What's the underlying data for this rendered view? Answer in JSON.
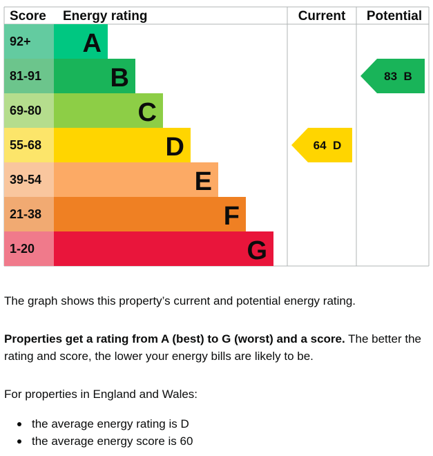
{
  "chart_data": {
    "type": "bar",
    "headers": {
      "score": "Score",
      "rating": "Energy rating",
      "current": "Current",
      "potential": "Potential"
    },
    "bands": [
      {
        "letter": "A",
        "range": "92+",
        "min": 92,
        "max": 100,
        "bar_color": "#00c781",
        "score_color": "#63cba0"
      },
      {
        "letter": "B",
        "range": "81-91",
        "min": 81,
        "max": 91,
        "bar_color": "#19b459",
        "score_color": "#6cc58c"
      },
      {
        "letter": "C",
        "range": "69-80",
        "min": 69,
        "max": 80,
        "bar_color": "#8dce46",
        "score_color": "#b5dd8d"
      },
      {
        "letter": "D",
        "range": "55-68",
        "min": 55,
        "max": 68,
        "bar_color": "#ffd500",
        "score_color": "#fce56a"
      },
      {
        "letter": "E",
        "range": "39-54",
        "min": 39,
        "max": 54,
        "bar_color": "#fcaa65",
        "score_color": "#f9c69e"
      },
      {
        "letter": "F",
        "range": "21-38",
        "min": 21,
        "max": 38,
        "bar_color": "#ef8023",
        "score_color": "#f1aa72"
      },
      {
        "letter": "G",
        "range": "1-20",
        "min": 1,
        "max": 20,
        "bar_color": "#e9153b",
        "score_color": "#f07a8b"
      }
    ],
    "current": {
      "score": 64,
      "rating": "D",
      "color": "#ffd500",
      "text_color": "#0b0c0c"
    },
    "potential": {
      "score": 83,
      "rating": "B",
      "color": "#19b459",
      "text_color": "#0b0c0c"
    }
  },
  "text": {
    "intro": "The graph shows this property’s current and potential energy rating.",
    "bold": "Properties get a rating from A (best) to G (worst) and a score.",
    "rest": " The better the rating and score, the lower your energy bills are likely to be.",
    "region": "For properties in England and Wales:",
    "bullets": [
      "the average energy rating is D",
      "the average energy score is 60"
    ]
  }
}
